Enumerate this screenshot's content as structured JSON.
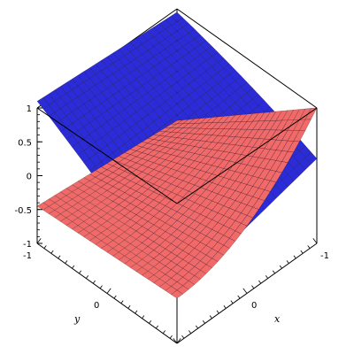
{
  "chart_data": {
    "type": "surface3d",
    "xlabel": "x",
    "ylabel": "y",
    "zlabel": "",
    "xlim": [
      -1,
      1
    ],
    "ylim": [
      -1,
      1
    ],
    "zlim": [
      -1,
      1
    ],
    "z_ticks": [
      "1",
      "0.5",
      "0",
      "-0.5",
      "-1"
    ],
    "x_ticks": [
      "-1",
      "0"
    ],
    "y_ticks": [
      "-1",
      "0"
    ],
    "grid": false,
    "series": [
      {
        "color": "#2b2bd8"
      },
      {
        "color": "#f06a6a"
      }
    ]
  }
}
